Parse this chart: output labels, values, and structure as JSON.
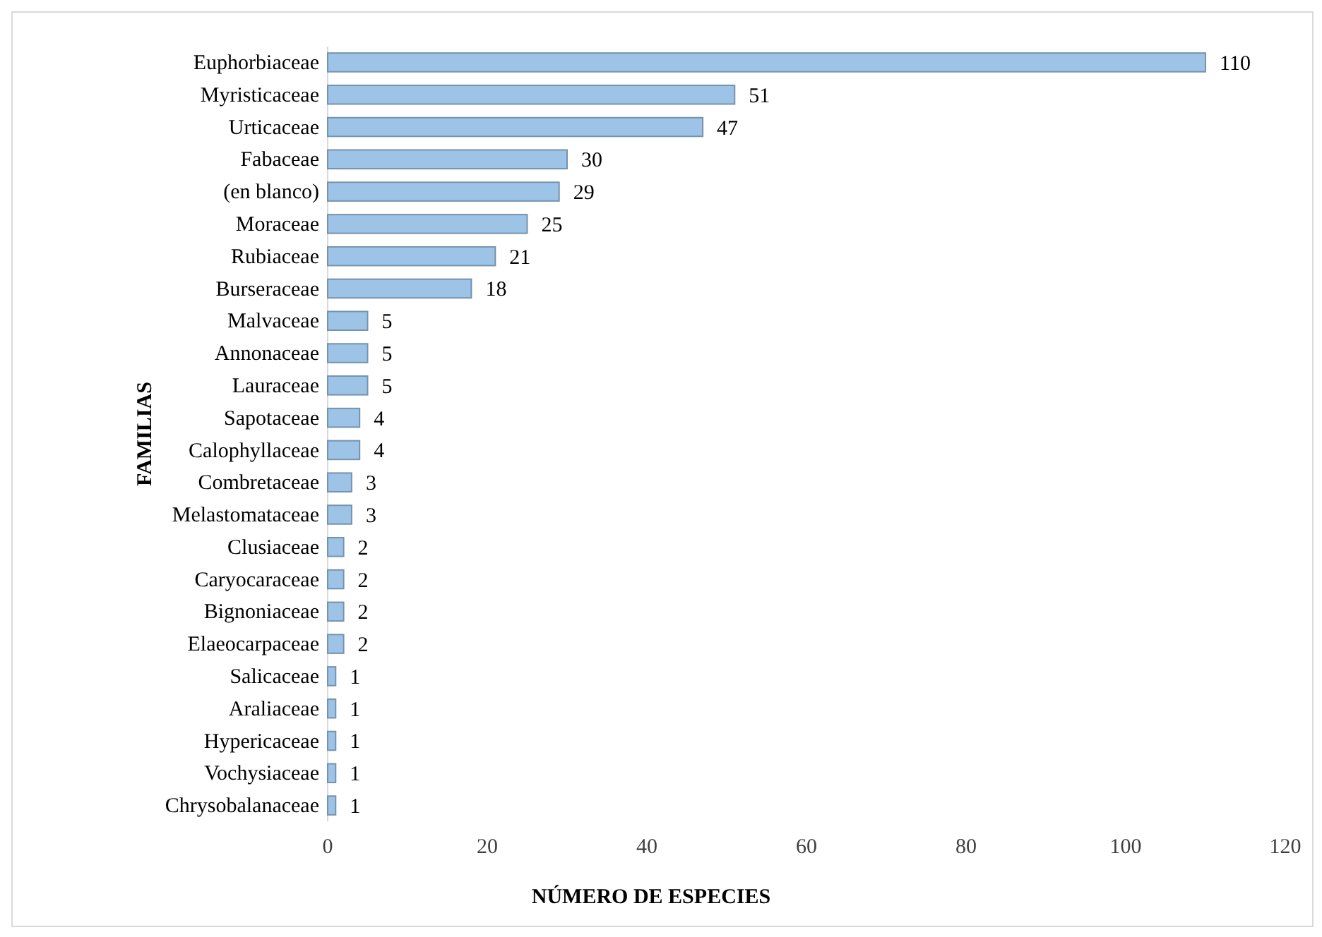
{
  "chart_data": {
    "type": "bar",
    "orientation": "horizontal",
    "xlabel": "NÚMERO DE ESPECIES",
    "ylabel": "FAMILIAS",
    "categories": [
      "Euphorbiaceae",
      "Myristicaceae",
      "Urticaceae",
      "Fabaceae",
      "(en blanco)",
      "Moraceae",
      "Rubiaceae",
      "Burseraceae",
      "Malvaceae",
      "Annonaceae",
      "Lauraceae",
      "Sapotaceae",
      "Calophyllaceae",
      "Combretaceae",
      "Melastomataceae",
      "Clusiaceae",
      "Caryocaraceae",
      "Bignoniaceae",
      "Elaeocarpaceae",
      "Salicaceae",
      "Araliaceae",
      "Hypericaceae",
      "Vochysiaceae",
      "Chrysobalanaceae"
    ],
    "values": [
      110,
      51,
      47,
      30,
      29,
      25,
      21,
      18,
      5,
      5,
      5,
      4,
      4,
      3,
      3,
      2,
      2,
      2,
      2,
      1,
      1,
      1,
      1,
      1
    ],
    "color": "#9dc3e6",
    "xlim": [
      0,
      120
    ],
    "xticks": [
      0,
      20,
      40,
      60,
      80,
      100,
      120
    ],
    "data_labels": true,
    "grid": false
  }
}
